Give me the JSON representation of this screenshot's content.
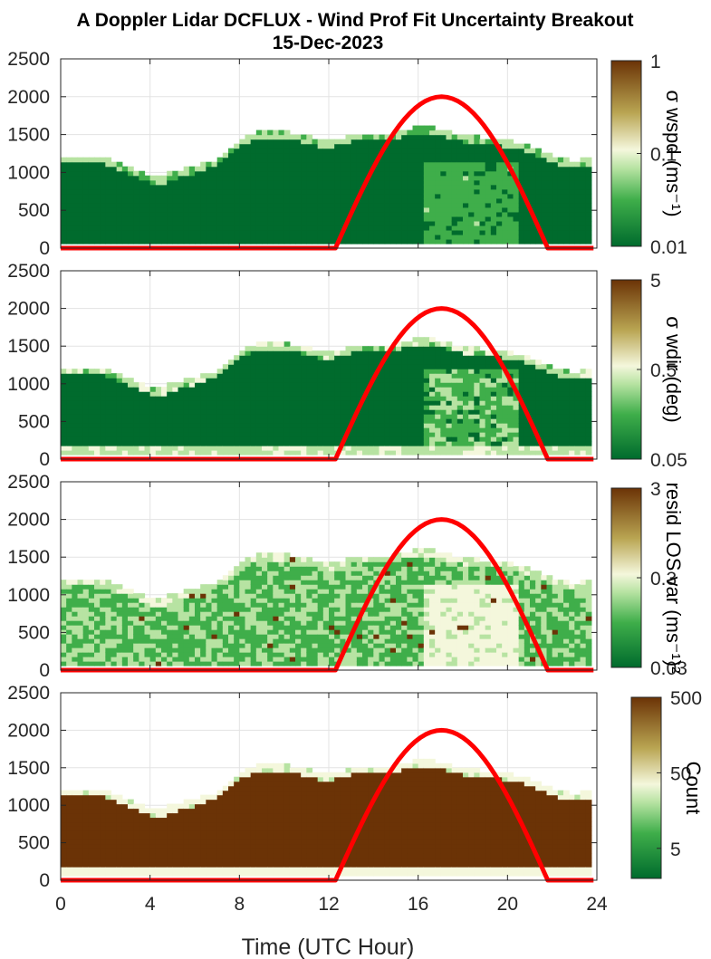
{
  "title_line1": "A Doppler Lidar DCFLUX - Wind Prof Fit Uncertainty Breakout",
  "title_line2": "15-Dec-2023",
  "xlabel": "Time (UTC Hour)",
  "colors": {
    "dark_green": "#006b2d",
    "mid_green": "#3fae4a",
    "light_green": "#b7e3a2",
    "cream": "#f4f7dc",
    "olive": "#b9a552",
    "brown": "#6b3306",
    "sun_curve": "#ff0000"
  },
  "chart_data": [
    {
      "type": "heatmap",
      "panel": "wspd",
      "colorbar_label": "σ wspd (ms⁻¹)",
      "colorbar_scale": "log",
      "colorbar_ticks": [
        "0.01",
        "0.1",
        "1"
      ],
      "clim": [
        0.01,
        1
      ],
      "x": {
        "range": [
          0,
          24
        ],
        "ticks": [
          0,
          4,
          8,
          12,
          16,
          20,
          24
        ],
        "tick_labels": [
          "0",
          "4",
          "8",
          "12",
          "16",
          "20",
          "24"
        ]
      },
      "y": {
        "range": [
          0,
          2500
        ],
        "ticks": [
          0,
          500,
          1000,
          1500,
          2000,
          2500
        ],
        "tick_labels": [
          "0",
          "500",
          "1000",
          "1500",
          "2000",
          "2500"
        ]
      },
      "boundary_layer_top_m": {
        "hours": [
          0,
          1,
          2,
          3,
          4,
          4.5,
          5,
          6,
          7,
          8,
          9,
          10,
          11,
          12,
          13,
          14,
          15,
          16,
          17,
          18,
          19,
          20,
          21,
          22,
          23,
          23.5
        ],
        "heights": [
          1200,
          1190,
          1170,
          1060,
          930,
          910,
          980,
          1050,
          1150,
          1400,
          1520,
          1510,
          1450,
          1380,
          1470,
          1500,
          1500,
          1580,
          1550,
          1470,
          1430,
          1400,
          1330,
          1190,
          1130,
          1160
        ]
      },
      "sun_elevation_curve": {
        "start_hour": 12.3,
        "peak_hour": 17,
        "end_hour": 21.8,
        "peak_height": 2000
      }
    },
    {
      "type": "heatmap",
      "panel": "wdir",
      "colorbar_label": "σ wdir (deg)",
      "colorbar_scale": "log",
      "colorbar_ticks": [
        "0.05",
        "0.5",
        "5"
      ],
      "clim": [
        0.05,
        5
      ],
      "x": {
        "range": [
          0,
          24
        ],
        "ticks": [
          0,
          4,
          8,
          12,
          16,
          20,
          24
        ],
        "tick_labels": [
          "0",
          "4",
          "8",
          "12",
          "16",
          "20",
          "24"
        ]
      },
      "y": {
        "range": [
          0,
          2500
        ],
        "ticks": [
          0,
          500,
          1000,
          1500,
          2000,
          2500
        ],
        "tick_labels": [
          "0",
          "500",
          "1000",
          "1500",
          "2000",
          "2500"
        ]
      }
    },
    {
      "type": "heatmap",
      "panel": "resid",
      "colorbar_label": "resid LOS var (ms⁻¹)²",
      "colorbar_scale": "log",
      "colorbar_ticks": [
        "0.03",
        "0.3",
        "3"
      ],
      "clim": [
        0.03,
        3
      ],
      "x": {
        "range": [
          0,
          24
        ],
        "ticks": [
          0,
          4,
          8,
          12,
          16,
          20,
          24
        ],
        "tick_labels": [
          "0",
          "4",
          "8",
          "12",
          "16",
          "20",
          "24"
        ]
      },
      "y": {
        "range": [
          0,
          2500
        ],
        "ticks": [
          0,
          500,
          1000,
          1500,
          2000,
          2500
        ],
        "tick_labels": [
          "0",
          "500",
          "1000",
          "1500",
          "2000",
          "2500"
        ]
      }
    },
    {
      "type": "heatmap",
      "panel": "count",
      "colorbar_label": "Count",
      "colorbar_scale": "log",
      "colorbar_ticks": [
        "5",
        "50",
        "500"
      ],
      "clim": [
        2,
        500
      ],
      "x": {
        "range": [
          0,
          24
        ],
        "ticks": [
          0,
          4,
          8,
          12,
          16,
          20,
          24
        ],
        "tick_labels": [
          "0",
          "4",
          "8",
          "12",
          "16",
          "20",
          "24"
        ]
      },
      "y": {
        "range": [
          0,
          2500
        ],
        "ticks": [
          0,
          500,
          1000,
          1500,
          2000,
          2500
        ],
        "tick_labels": [
          "0",
          "500",
          "1000",
          "1500",
          "2000",
          "2500"
        ]
      }
    }
  ]
}
